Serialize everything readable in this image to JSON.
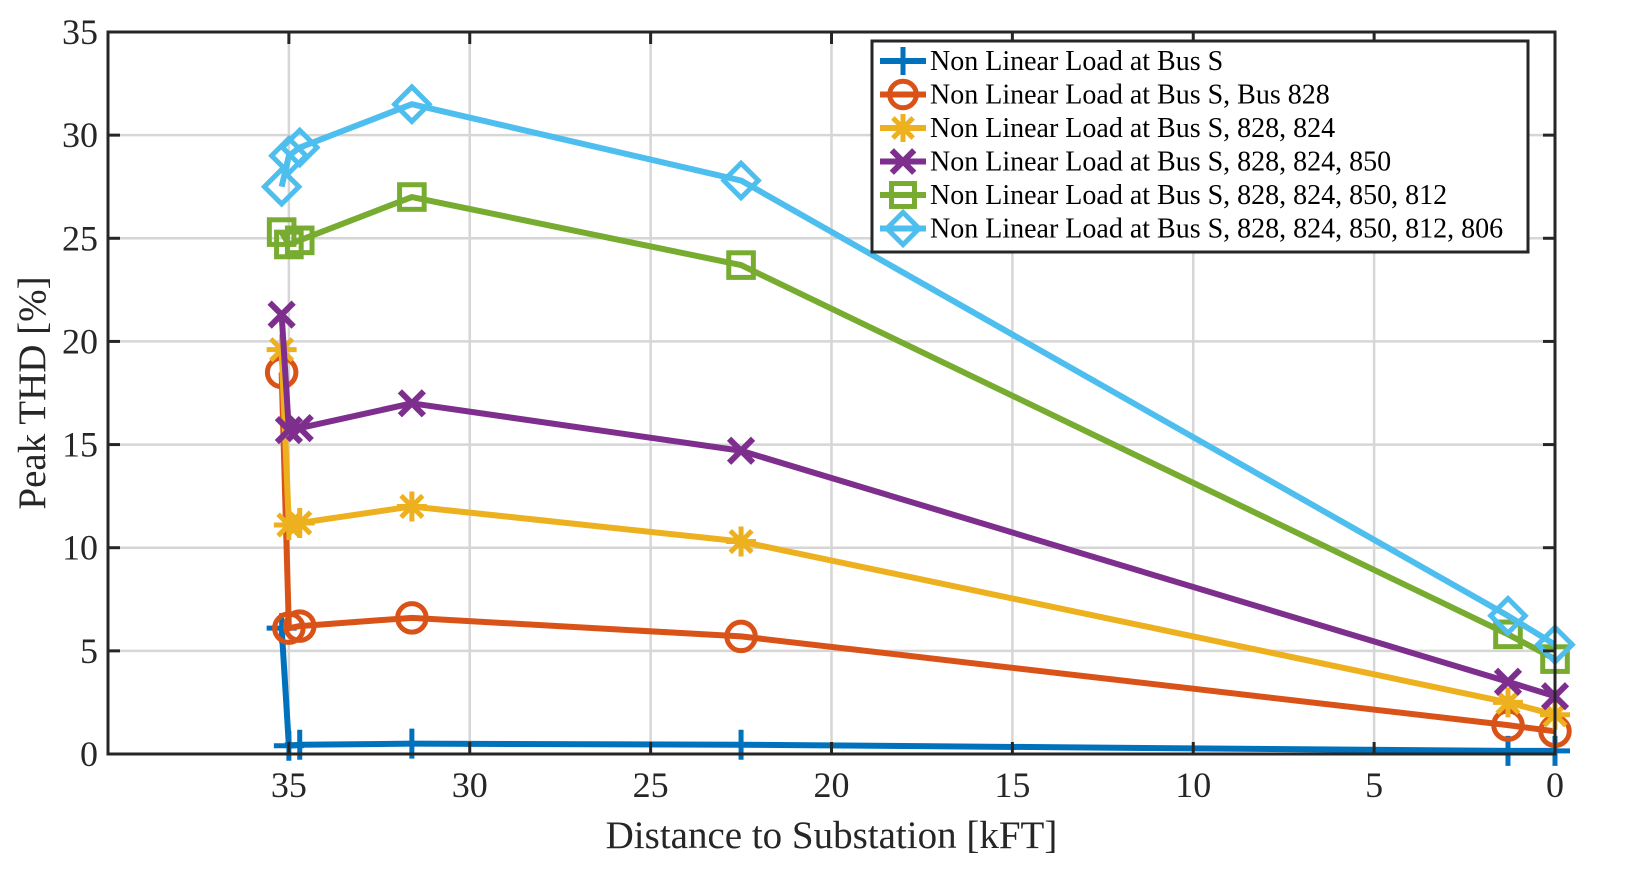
{
  "chart_data": {
    "type": "line",
    "title": "",
    "xlabel": "Distance to Substation [kFT]",
    "ylabel": "Peak THD [%]",
    "xlim": [
      40,
      0
    ],
    "ylim": [
      0,
      35
    ],
    "x_reversed": true,
    "grid": true,
    "legend_position": "top-right",
    "x_ticks": [
      35,
      30,
      25,
      20,
      15,
      10,
      5,
      0
    ],
    "y_ticks": [
      0,
      5,
      10,
      15,
      20,
      25,
      30,
      35
    ],
    "x": [
      35.2,
      35.0,
      34.7,
      31.6,
      22.5,
      1.3,
      0
    ],
    "series": [
      {
        "name": "Non Linear Load at Bus S",
        "color": "#0072BD",
        "marker": "plus",
        "x": [
          35.2,
          35.0,
          34.7,
          31.6,
          22.5,
          1.3,
          0
        ],
        "values": [
          6.1,
          0.4,
          0.45,
          0.5,
          0.45,
          0.15,
          0.15
        ]
      },
      {
        "name": "Non Linear Load at Bus S, Bus 828",
        "color": "#D95319",
        "marker": "circle",
        "x": [
          35.2,
          35.0,
          34.7,
          31.6,
          22.5,
          1.3,
          0
        ],
        "values": [
          18.5,
          6.1,
          6.2,
          6.6,
          5.7,
          1.4,
          1.1
        ]
      },
      {
        "name": "Non Linear Load at Bus S, 828, 824",
        "color": "#EDB120",
        "marker": "star",
        "x": [
          35.2,
          35.0,
          34.7,
          31.6,
          22.5,
          1.3,
          0
        ],
        "values": [
          19.6,
          11.1,
          11.2,
          12.0,
          10.3,
          2.5,
          1.9
        ]
      },
      {
        "name": "Non Linear Load at Bus S, 828, 824, 850",
        "color": "#7E2F8E",
        "marker": "x",
        "x": [
          35.2,
          35.0,
          34.7,
          31.6,
          22.5,
          1.3,
          0
        ],
        "values": [
          21.3,
          15.7,
          15.8,
          17.0,
          14.7,
          3.5,
          2.8
        ]
      },
      {
        "name": "Non Linear Load at Bus S, 828, 824, 850, 812",
        "color": "#77AC30",
        "marker": "square",
        "x": [
          35.2,
          35.0,
          34.7,
          31.6,
          22.5,
          1.3,
          0
        ],
        "values": [
          25.3,
          24.7,
          24.9,
          27.0,
          23.7,
          5.8,
          4.6
        ]
      },
      {
        "name": "Non Linear Load at Bus S, 828, 824, 850, 812, 806",
        "color": "#4DBEEE",
        "marker": "diamond",
        "x": [
          35.2,
          35.0,
          34.7,
          31.6,
          22.5,
          1.3,
          0
        ],
        "values": [
          27.5,
          29.0,
          29.4,
          31.5,
          27.8,
          6.7,
          5.3
        ]
      }
    ]
  }
}
